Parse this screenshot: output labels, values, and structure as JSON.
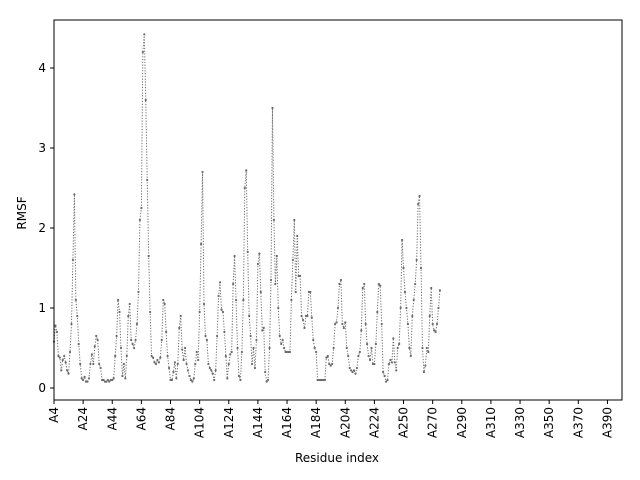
{
  "chart_data": {
    "type": "line",
    "xlabel": "Residue index",
    "ylabel": "RMSF",
    "ylim": [
      -0.15,
      4.6
    ],
    "yticks": [
      0,
      1,
      2,
      3,
      4
    ],
    "xlim": [
      4,
      394
    ],
    "xticks": [
      {
        "pos": 4,
        "label": "A4"
      },
      {
        "pos": 24,
        "label": "A24"
      },
      {
        "pos": 44,
        "label": "A44"
      },
      {
        "pos": 64,
        "label": "A64"
      },
      {
        "pos": 84,
        "label": "A84"
      },
      {
        "pos": 104,
        "label": "A104"
      },
      {
        "pos": 124,
        "label": "A124"
      },
      {
        "pos": 144,
        "label": "A144"
      },
      {
        "pos": 164,
        "label": "A164"
      },
      {
        "pos": 184,
        "label": "A184"
      },
      {
        "pos": 204,
        "label": "A204"
      },
      {
        "pos": 224,
        "label": "A224"
      },
      {
        "pos": 244,
        "label": "A250"
      },
      {
        "pos": 264,
        "label": "A270"
      },
      {
        "pos": 284,
        "label": "A290"
      },
      {
        "pos": 304,
        "label": "A310"
      },
      {
        "pos": 324,
        "label": "A330"
      },
      {
        "pos": 344,
        "label": "A350"
      },
      {
        "pos": 364,
        "label": "A370"
      },
      {
        "pos": 384,
        "label": "A390"
      }
    ],
    "grid": false,
    "line_style": "dotted",
    "marker": "point",
    "series_color": "#6b6b6b",
    "x_start": 4,
    "values": [
      0.58,
      0.78,
      0.7,
      0.4,
      0.38,
      0.22,
      0.35,
      0.4,
      0.32,
      0.22,
      0.18,
      0.45,
      0.8,
      1.6,
      2.42,
      1.1,
      0.9,
      0.55,
      0.3,
      0.12,
      0.1,
      0.14,
      0.08,
      0.08,
      0.12,
      0.3,
      0.42,
      0.3,
      0.52,
      0.65,
      0.6,
      0.3,
      0.25,
      0.1,
      0.1,
      0.08,
      0.08,
      0.1,
      0.08,
      0.1,
      0.1,
      0.12,
      0.4,
      0.65,
      1.1,
      0.95,
      0.5,
      0.15,
      0.3,
      0.12,
      0.4,
      0.9,
      1.05,
      0.6,
      0.55,
      0.5,
      0.6,
      0.8,
      1.2,
      2.1,
      2.25,
      4.2,
      4.42,
      3.6,
      2.6,
      1.65,
      0.95,
      0.4,
      0.38,
      0.32,
      0.3,
      0.35,
      0.32,
      0.38,
      0.6,
      1.1,
      1.05,
      0.7,
      0.4,
      0.25,
      0.1,
      0.1,
      0.2,
      0.32,
      0.12,
      0.3,
      0.75,
      0.9,
      0.48,
      0.35,
      0.5,
      0.3,
      0.22,
      0.15,
      0.1,
      0.08,
      0.12,
      0.3,
      0.45,
      0.35,
      0.95,
      1.8,
      2.7,
      1.05,
      0.65,
      0.6,
      0.3,
      0.25,
      0.22,
      0.18,
      0.1,
      0.22,
      0.65,
      1.15,
      1.32,
      0.98,
      0.95,
      0.7,
      0.4,
      0.12,
      0.3,
      0.42,
      0.45,
      1.3,
      1.65,
      1.1,
      0.5,
      0.15,
      0.1,
      0.45,
      1.1,
      2.5,
      2.72,
      1.7,
      0.9,
      0.65,
      0.3,
      0.5,
      0.25,
      0.6,
      1.55,
      1.68,
      1.2,
      0.72,
      0.75,
      0.2,
      0.08,
      0.1,
      0.5,
      1.35,
      3.5,
      2.1,
      1.3,
      1.65,
      1.0,
      0.65,
      0.55,
      0.6,
      0.5,
      0.45,
      0.45,
      0.45,
      0.45,
      1.1,
      1.6,
      2.1,
      1.2,
      1.9,
      1.4,
      1.4,
      0.9,
      0.85,
      0.75,
      0.9,
      0.9,
      1.2,
      1.2,
      0.88,
      0.6,
      0.5,
      0.45,
      0.1,
      0.1,
      0.1,
      0.1,
      0.1,
      0.1,
      0.38,
      0.4,
      0.3,
      0.28,
      0.3,
      0.5,
      0.8,
      0.82,
      1.0,
      1.3,
      1.35,
      0.8,
      0.75,
      0.82,
      0.5,
      0.4,
      0.25,
      0.22,
      0.2,
      0.22,
      0.18,
      0.25,
      0.4,
      0.45,
      0.72,
      1.25,
      1.3,
      0.8,
      0.55,
      0.4,
      0.35,
      0.5,
      0.3,
      0.3,
      0.55,
      0.95,
      1.3,
      1.28,
      0.8,
      0.2,
      0.15,
      0.08,
      0.1,
      0.3,
      0.35,
      0.32,
      0.62,
      0.32,
      0.22,
      0.5,
      0.55,
      1.0,
      1.85,
      1.5,
      1.2,
      1.0,
      0.8,
      0.5,
      0.4,
      0.9,
      1.1,
      1.3,
      1.6,
      2.3,
      2.4,
      1.5,
      0.5,
      0.2,
      0.28,
      0.5,
      0.45,
      0.9,
      1.25,
      0.8,
      0.72,
      0.7,
      0.8,
      1.0,
      1.22
    ]
  }
}
